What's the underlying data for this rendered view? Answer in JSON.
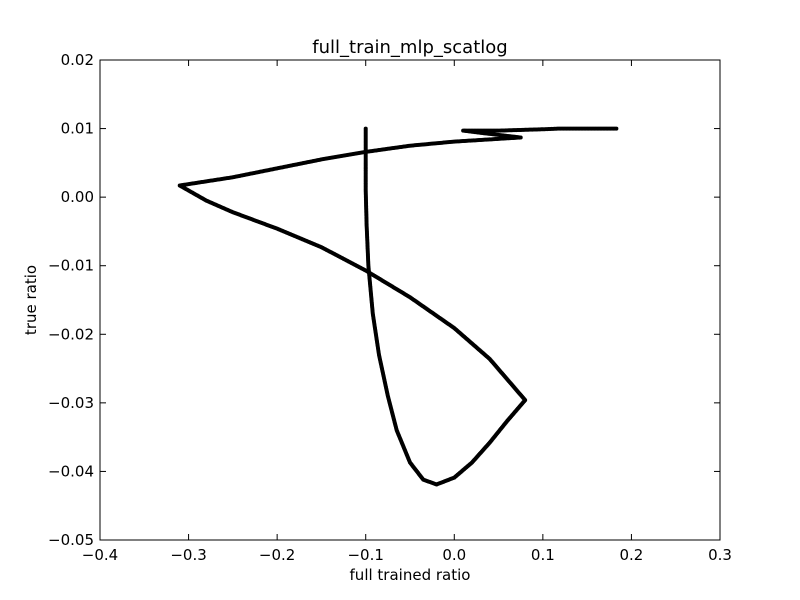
{
  "chart_data": {
    "type": "scatter",
    "title": "full_train_mlp_scatlog",
    "xlabel": "full trained ratio",
    "ylabel": "true ratio",
    "xlim": [
      -0.4,
      0.3
    ],
    "ylim": [
      -0.05,
      0.02
    ],
    "xticks": [
      -0.4,
      -0.3,
      -0.2,
      -0.1,
      0.0,
      0.1,
      0.2,
      0.3
    ],
    "xtick_labels": [
      "−0.4",
      "−0.3",
      "−0.2",
      "−0.1",
      "0.0",
      "0.1",
      "0.2",
      "0.3"
    ],
    "yticks": [
      0.02,
      0.01,
      0.0,
      -0.01,
      -0.02,
      -0.03,
      -0.04,
      -0.05
    ],
    "ytick_labels": [
      "0.02",
      "0.01",
      "0.00",
      "−0.01",
      "−0.02",
      "−0.03",
      "−0.04",
      "−0.05"
    ],
    "grid": false,
    "marker_color": "#000000",
    "series": [
      {
        "points": [
          [
            0.183,
            0.01
          ],
          [
            0.15,
            0.01
          ],
          [
            0.12,
            0.01
          ],
          [
            0.1,
            0.0099
          ],
          [
            0.075,
            0.0098
          ],
          [
            0.05,
            0.0097
          ],
          [
            0.01,
            0.0097
          ],
          [
            0.035,
            0.0093
          ],
          [
            0.075,
            0.0087
          ],
          [
            0.05,
            0.0085
          ],
          [
            0.0,
            0.0081
          ],
          [
            -0.05,
            0.0075
          ],
          [
            -0.1,
            0.0066
          ],
          [
            -0.15,
            0.0055
          ],
          [
            -0.2,
            0.0042
          ],
          [
            -0.25,
            0.0029
          ],
          [
            -0.31,
            0.0017
          ],
          [
            -0.28,
            -0.0005
          ],
          [
            -0.25,
            -0.0022
          ],
          [
            -0.2,
            -0.0046
          ],
          [
            -0.15,
            -0.0073
          ],
          [
            -0.1,
            -0.0107
          ],
          [
            -0.05,
            -0.0146
          ],
          [
            0.0,
            -0.0191
          ],
          [
            0.04,
            -0.0236
          ],
          [
            0.08,
            -0.0296
          ],
          [
            0.06,
            -0.0326
          ],
          [
            0.04,
            -0.0358
          ],
          [
            0.02,
            -0.0387
          ],
          [
            0.0,
            -0.0409
          ],
          [
            -0.02,
            -0.0419
          ],
          [
            -0.035,
            -0.0412
          ],
          [
            -0.05,
            -0.0387
          ],
          [
            -0.065,
            -0.034
          ],
          [
            -0.075,
            -0.029
          ],
          [
            -0.085,
            -0.023
          ],
          [
            -0.092,
            -0.017
          ],
          [
            -0.097,
            -0.01
          ],
          [
            -0.099,
            -0.004
          ],
          [
            -0.1,
            0.001
          ],
          [
            -0.1,
            0.005
          ],
          [
            -0.1,
            0.01
          ]
        ]
      }
    ]
  }
}
